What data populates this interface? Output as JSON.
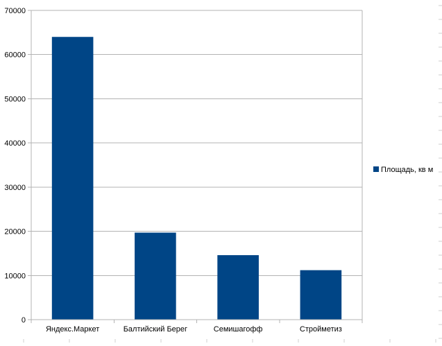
{
  "chart_data": {
    "type": "bar",
    "title": "",
    "xlabel": "",
    "ylabel": "",
    "categories": [
      "Яндекс.Маркет",
      "Балтийский Берег",
      "Семишагофф",
      "Стройметиз"
    ],
    "series": [
      {
        "name": "Площадь, кв м",
        "values": [
          64000,
          19700,
          14600,
          11200
        ],
        "color": "#004586"
      }
    ],
    "ylim": [
      0,
      70000
    ],
    "yticks": [
      0,
      10000,
      20000,
      30000,
      40000,
      50000,
      60000,
      70000
    ],
    "grid": true,
    "legend_position": "right"
  }
}
